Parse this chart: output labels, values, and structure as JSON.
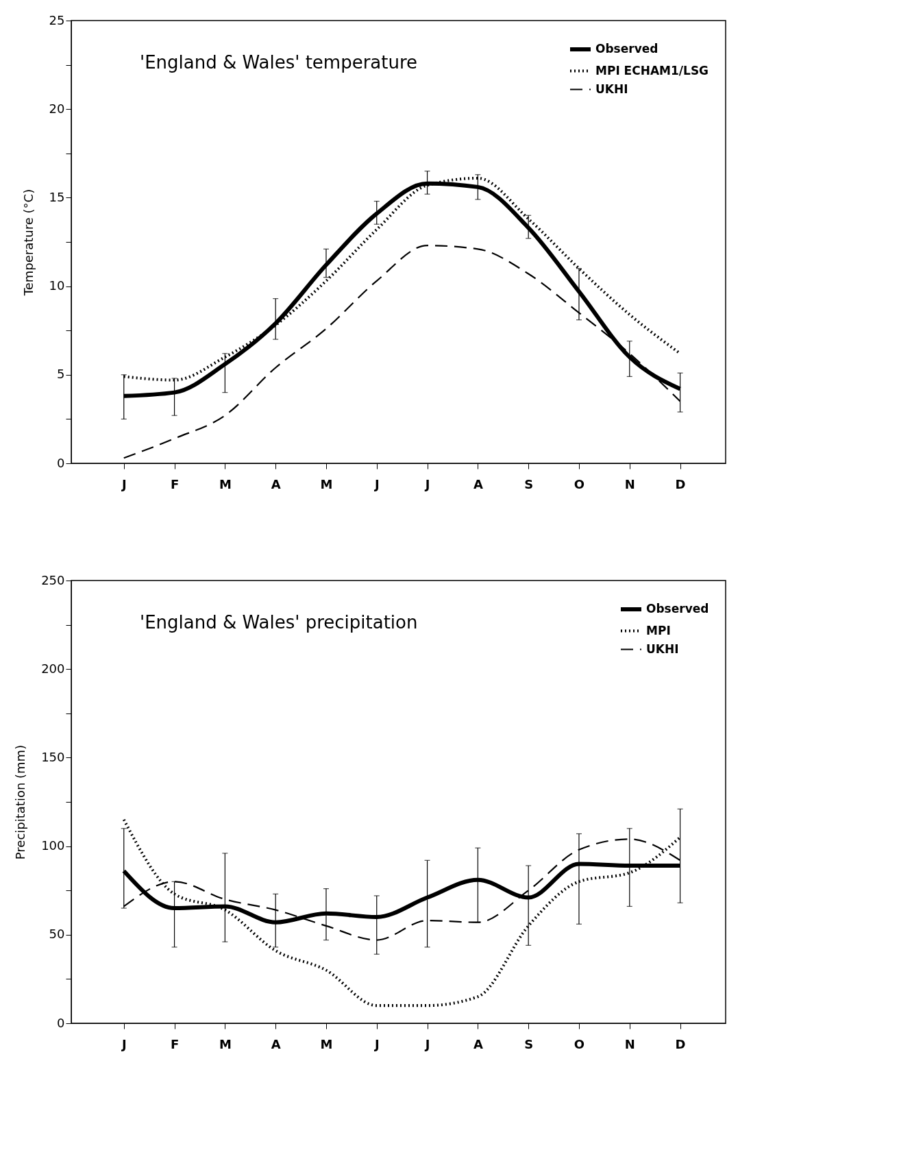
{
  "chart_data": [
    {
      "type": "line",
      "title": "'England & Wales' temperature",
      "ylabel": "Temperature (°C)",
      "categories": [
        "J",
        "F",
        "M",
        "A",
        "M",
        "J",
        "J",
        "A",
        "S",
        "O",
        "N",
        "D"
      ],
      "series": [
        {
          "name": "Observed",
          "color": "#000000",
          "line_style": "solid",
          "values": [
            3.8,
            4.0,
            5.6,
            7.9,
            11.2,
            14.1,
            15.8,
            15.6,
            13.3,
            9.7,
            6.0,
            4.2
          ],
          "errors": [
            [
              2.5,
              5.0
            ],
            [
              2.7,
              4.8
            ],
            [
              4.0,
              6.2
            ],
            [
              7.0,
              9.3
            ],
            [
              10.5,
              12.1
            ],
            [
              13.5,
              14.8
            ],
            [
              15.2,
              16.5
            ],
            [
              14.9,
              16.3
            ],
            [
              12.7,
              14.0
            ],
            [
              8.1,
              11.0
            ],
            [
              4.9,
              6.9
            ],
            [
              2.9,
              5.1
            ]
          ]
        },
        {
          "name": "MPI ECHAM1/LSG",
          "color": "#000000",
          "line_style": "dotted",
          "values": [
            4.9,
            4.7,
            6.0,
            7.8,
            10.3,
            13.2,
            15.7,
            16.1,
            13.8,
            11.0,
            8.4,
            6.2
          ]
        },
        {
          "name": "UKHI",
          "color": "#000000",
          "line_style": "dashed",
          "values": [
            0.3,
            1.4,
            2.7,
            5.4,
            7.6,
            10.3,
            12.3,
            12.1,
            10.7,
            8.5,
            6.2,
            3.5
          ]
        }
      ],
      "ylim": [
        0,
        25
      ],
      "yticks": [
        0,
        {
          "value": 2.5,
          "label": null
        },
        5,
        {
          "value": 7.5,
          "label": null
        },
        10,
        {
          "value": 12.5,
          "label": null
        },
        15,
        {
          "value": 17.5,
          "label": null
        },
        20,
        {
          "value": 22.5,
          "label": null
        },
        25
      ],
      "grid": false,
      "legend": "top right",
      "marker": "none"
    },
    {
      "type": "line",
      "title": "'England & Wales' precipitation",
      "ylabel": "Precipitation (mm)",
      "categories": [
        "J",
        "F",
        "M",
        "A",
        "M",
        "J",
        "J",
        "A",
        "S",
        "O",
        "N",
        "D"
      ],
      "series": [
        {
          "name": "Observed",
          "color": "#000000",
          "line_style": "solid",
          "values": [
            86,
            65,
            66,
            57,
            62,
            60,
            71,
            81,
            71,
            90,
            89,
            89
          ],
          "errors": [
            [
              65,
              110
            ],
            [
              43,
              80
            ],
            [
              46,
              96
            ],
            [
              43,
              73
            ],
            [
              47,
              76
            ],
            [
              39,
              72
            ],
            [
              43,
              92
            ],
            [
              57,
              99
            ],
            [
              44,
              89
            ],
            [
              56,
              107
            ],
            [
              66,
              110
            ],
            [
              68,
              121
            ]
          ]
        },
        {
          "name": "MPI",
          "color": "#000000",
          "line_style": "dotted",
          "values": [
            115,
            73,
            64,
            41,
            30,
            10,
            10,
            15,
            55,
            80,
            85,
            105
          ]
        },
        {
          "name": "UKHI",
          "color": "#000000",
          "line_style": "dashed",
          "values": [
            66,
            80,
            70,
            64,
            55,
            47,
            58,
            57,
            75,
            98,
            104,
            92
          ]
        }
      ],
      "ylim": [
        0,
        250
      ],
      "yticks": [
        0,
        {
          "value": 25,
          "label": null
        },
        50,
        {
          "value": 75,
          "label": null
        },
        100,
        {
          "value": 125,
          "label": null
        },
        150,
        {
          "value": 175,
          "label": null
        },
        200,
        {
          "value": 225,
          "label": null
        },
        250
      ],
      "grid": false,
      "legend": "top right",
      "marker": "none"
    }
  ]
}
